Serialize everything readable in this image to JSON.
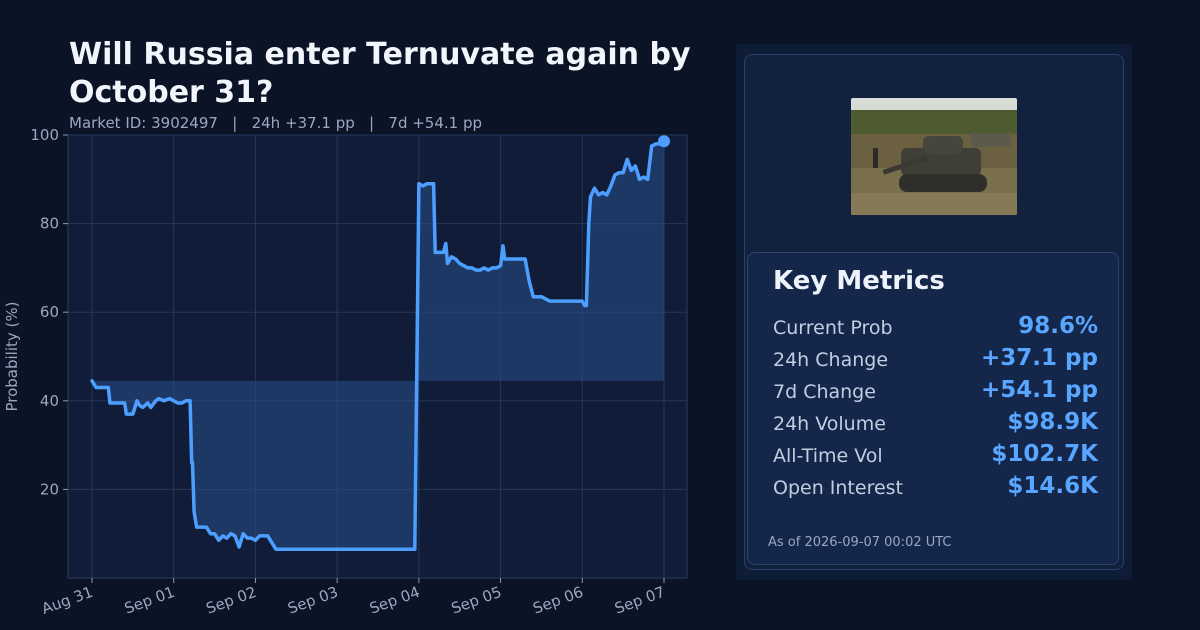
{
  "header": {
    "title": "Will Russia enter Ternuvate again by October 31?",
    "subtitle": "Market ID: 3902497   |   24h +37.1 pp   |   7d +54.1 pp"
  },
  "chart_data": {
    "type": "area",
    "title": "Will Russia enter Ternuvate again by October 31?",
    "ylabel": "Probability (%)",
    "xlabel": "",
    "ylim": [
      0,
      100
    ],
    "yticks": [
      20,
      40,
      60,
      80,
      100
    ],
    "xlim": [
      "Aug 31",
      "Sep 07"
    ],
    "xtick_labels": [
      "Aug 31",
      "Sep 01",
      "Sep 02",
      "Sep 03",
      "Sep 04",
      "Sep 05",
      "Sep 06",
      "Sep 07"
    ],
    "grid": true,
    "baseline": 44.5,
    "line_color": "#4d9fff",
    "fill_color": "#2a4f8a",
    "series": [
      {
        "x_days": [
          0.0,
          0.05,
          0.1,
          0.2,
          0.22,
          0.3,
          0.4,
          0.42,
          0.5,
          0.55,
          0.58,
          0.62,
          0.68,
          0.72,
          0.78,
          0.82,
          0.88,
          0.95,
          1.0,
          1.05,
          1.1,
          1.15,
          1.2,
          1.22,
          1.23,
          1.25,
          1.28,
          1.32,
          1.4,
          1.45,
          1.5,
          1.55,
          1.6,
          1.65,
          1.7,
          1.75,
          1.8,
          1.85,
          1.9,
          1.95,
          2.0,
          2.05,
          2.1,
          2.15,
          2.2,
          2.25,
          2.3,
          2.35,
          2.4,
          2.45,
          2.5,
          2.55,
          2.6,
          2.7,
          2.8,
          2.9,
          3.0,
          3.1,
          3.2,
          3.3,
          3.35,
          3.37,
          3.4,
          3.43,
          3.46,
          3.5,
          3.55,
          3.6,
          3.65,
          3.7,
          3.75,
          3.8,
          3.85,
          3.9,
          3.95,
          4.0,
          4.05,
          4.1,
          4.15,
          4.18,
          4.2,
          4.25,
          4.3,
          4.33,
          4.35,
          4.4,
          4.45,
          4.5,
          4.55,
          4.6,
          4.65,
          4.7,
          4.75,
          4.8,
          4.85,
          4.9,
          4.95,
          5.0,
          5.03,
          5.05,
          5.1,
          5.2,
          5.3,
          5.35,
          5.4,
          5.5,
          5.6,
          5.7,
          5.8,
          5.9,
          6.0,
          6.03,
          6.05,
          6.08,
          6.1,
          6.15,
          6.2,
          6.25,
          6.3,
          6.35,
          6.4,
          6.45,
          6.5,
          6.55,
          6.6,
          6.65,
          6.7,
          6.75,
          6.8,
          6.85,
          6.9,
          6.95,
          7.0
        ],
        "values": [
          44.5,
          43.0,
          43.0,
          43.0,
          39.5,
          39.5,
          39.5,
          37.0,
          37.0,
          40.0,
          39.0,
          38.5,
          39.5,
          38.5,
          40.0,
          40.5,
          40.0,
          40.5,
          40.0,
          39.5,
          39.5,
          40.0,
          40.0,
          26.0,
          26.0,
          15.0,
          11.5,
          11.5,
          11.5,
          10.0,
          10.0,
          8.5,
          9.5,
          9.0,
          10.0,
          9.5,
          7.0,
          10.0,
          9.0,
          9.0,
          8.5,
          9.5,
          9.5,
          9.5,
          8.0,
          6.5,
          6.5,
          6.5,
          6.5,
          6.5,
          6.5,
          6.5,
          6.5,
          6.5,
          6.5,
          6.5,
          6.5,
          6.5,
          6.5,
          6.5,
          6.5,
          6.5,
          6.5,
          6.5,
          6.5,
          6.5,
          6.5,
          6.5,
          6.5,
          6.5,
          6.5,
          6.5,
          6.5,
          6.5,
          6.5,
          89.0,
          88.5,
          89.0,
          89.0,
          89.0,
          73.5,
          73.5,
          73.5,
          75.5,
          71.0,
          72.5,
          72.0,
          71.0,
          70.5,
          70.0,
          70.0,
          69.5,
          69.5,
          70.0,
          69.5,
          70.0,
          70.0,
          70.5,
          75.0,
          72.0,
          72.0,
          72.0,
          72.0,
          67.0,
          63.5,
          63.5,
          62.5,
          62.5,
          62.5,
          62.5,
          62.5,
          61.5,
          61.5,
          80.0,
          86.0,
          88.0,
          86.5,
          87.0,
          86.5,
          88.5,
          91.0,
          91.5,
          91.5,
          94.5,
          92.0,
          93.0,
          90.0,
          90.5,
          90.0,
          97.5,
          98.0,
          98.0,
          98.6
        ]
      }
    ],
    "last_point": 98.6
  },
  "image": {
    "alt": "tank-photo"
  },
  "metrics": {
    "title": "Key Metrics",
    "rows": [
      {
        "label": "Current Prob",
        "value": "98.6%"
      },
      {
        "label": "24h Change",
        "value": "+37.1 pp"
      },
      {
        "label": "7d Change",
        "value": "+54.1 pp"
      },
      {
        "label": "24h Volume",
        "value": "$98.9K"
      },
      {
        "label": "All-Time Vol",
        "value": "$102.7K"
      },
      {
        "label": "Open Interest",
        "value": "$14.6K"
      }
    ],
    "as_of": "As of 2026-09-07 00:02 UTC",
    "value_color": "#58a6ff"
  }
}
